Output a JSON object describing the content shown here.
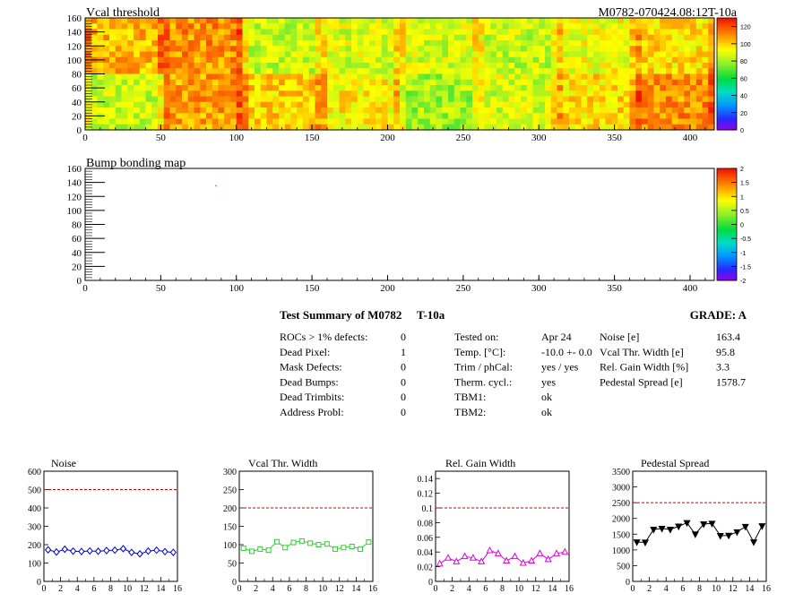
{
  "top_map": {
    "title": "Vcal threshold",
    "id_label": "M0782-070424.08:12T-10a",
    "x_ticks": [
      "0",
      "50",
      "100",
      "150",
      "200",
      "250",
      "300",
      "350",
      "400"
    ],
    "y_ticks": [
      "0",
      "20",
      "40",
      "60",
      "80",
      "100",
      "120",
      "140",
      "160"
    ],
    "palette_ticks": [
      "0",
      "20",
      "40",
      "60",
      "80",
      "100",
      "120"
    ]
  },
  "bump_map": {
    "title": "Bump bonding map",
    "x_ticks": [
      "0",
      "50",
      "100",
      "150",
      "200",
      "250",
      "300",
      "350",
      "400"
    ],
    "y_ticks": [
      "0",
      "20",
      "40",
      "60",
      "80",
      "100",
      "120",
      "140",
      "160"
    ],
    "palette_ticks": [
      "-2",
      "-1.5",
      "-1",
      "-0.5",
      "0",
      "0.5",
      "1",
      "1.5",
      "2"
    ]
  },
  "summary": {
    "title": "Test Summary of M0782",
    "subtitle": "T-10a",
    "grade": "GRADE:  A",
    "col1": [
      {
        "label": "ROCs > 1% defects:",
        "value": "0"
      },
      {
        "label": "Dead Pixel:",
        "value": "1"
      },
      {
        "label": "Mask Defects:",
        "value": "0"
      },
      {
        "label": "Dead Bumps:",
        "value": "0"
      },
      {
        "label": "Dead Trimbits:",
        "value": "0"
      },
      {
        "label": "Address Probl:",
        "value": "0"
      }
    ],
    "col2": [
      {
        "label": "Tested on:",
        "value": "Apr 24"
      },
      {
        "label": "Temp. [°C]:",
        "value": "-10.0 +- 0.0"
      },
      {
        "label": "Trim / phCal:",
        "value": "yes / yes"
      },
      {
        "label": "Therm. cycl.:",
        "value": "yes"
      },
      {
        "label": "TBM1:",
        "value": "ok"
      },
      {
        "label": "TBM2:",
        "value": "ok"
      }
    ],
    "col3": [
      {
        "label": "Noise [e]",
        "value": "163.4"
      },
      {
        "label": "Vcal Thr. Width [e]",
        "value": "95.8"
      },
      {
        "label": "Rel. Gain Width [%]",
        "value": "3.3"
      },
      {
        "label": "Pedestal Spread [e]",
        "value": "1578.7"
      }
    ]
  },
  "chart_data": [
    {
      "type": "heatmap",
      "title": "Vcal threshold",
      "xlim": [
        0,
        416
      ],
      "ylim": [
        0,
        160
      ],
      "zlim": [
        0,
        130
      ],
      "roc_mean_values": {
        "upper_row": [
          105,
          110,
          85,
          88,
          87,
          85,
          92,
          98
        ],
        "lower_row": [
          85,
          108,
          100,
          95,
          80,
          87,
          98,
          110
        ]
      }
    },
    {
      "type": "heatmap",
      "title": "Bump bonding map",
      "xlim": [
        0,
        416
      ],
      "ylim": [
        0,
        160
      ],
      "zlim": [
        -2,
        2
      ],
      "points": [
        {
          "x": 86,
          "y": 136,
          "z": 0
        }
      ]
    },
    {
      "type": "line",
      "title": "Noise",
      "x": [
        0,
        1,
        2,
        3,
        4,
        5,
        6,
        7,
        8,
        9,
        10,
        11,
        12,
        13,
        14,
        15
      ],
      "values": [
        172,
        160,
        175,
        165,
        163,
        166,
        164,
        168,
        170,
        178,
        158,
        150,
        165,
        170,
        162,
        158
      ],
      "ylim": [
        0,
        600
      ],
      "xlim": [
        0,
        16
      ],
      "threshold": 500,
      "color": "#0000cc",
      "marker": "diamond",
      "y_ticks": [
        "0",
        "100",
        "200",
        "300",
        "400",
        "500",
        "600"
      ],
      "x_ticks": [
        "0",
        "2",
        "4",
        "6",
        "8",
        "10",
        "12",
        "14",
        "16"
      ]
    },
    {
      "type": "line",
      "title": "Vcal Thr. Width",
      "x": [
        0,
        1,
        2,
        3,
        4,
        5,
        6,
        7,
        8,
        9,
        10,
        11,
        12,
        13,
        14,
        15
      ],
      "values": [
        90,
        82,
        88,
        85,
        108,
        92,
        106,
        110,
        104,
        100,
        102,
        88,
        92,
        95,
        88,
        107
      ],
      "ylim": [
        0,
        300
      ],
      "xlim": [
        0,
        16
      ],
      "threshold": 200,
      "color": "#33cc33",
      "marker": "square",
      "y_ticks": [
        "0",
        "50",
        "100",
        "150",
        "200",
        "250",
        "300"
      ],
      "x_ticks": [
        "0",
        "2",
        "4",
        "6",
        "8",
        "10",
        "12",
        "14",
        "16"
      ]
    },
    {
      "type": "line",
      "title": "Rel. Gain Width",
      "x": [
        0,
        1,
        2,
        3,
        4,
        5,
        6,
        7,
        8,
        9,
        10,
        11,
        12,
        13,
        14,
        15
      ],
      "values": [
        0.024,
        0.032,
        0.027,
        0.034,
        0.032,
        0.027,
        0.042,
        0.038,
        0.028,
        0.034,
        0.025,
        0.028,
        0.038,
        0.03,
        0.038,
        0.04
      ],
      "ylim": [
        0,
        0.15
      ],
      "xlim": [
        0,
        16
      ],
      "threshold": 0.1,
      "color": "#dd00dd",
      "marker": "triangle",
      "y_ticks": [
        "0",
        "0.02",
        "0.04",
        "0.06",
        "0.08",
        "0.1",
        "0.12",
        "0.14"
      ],
      "x_ticks": [
        "0",
        "2",
        "4",
        "6",
        "8",
        "10",
        "12",
        "14",
        "16"
      ]
    },
    {
      "type": "line",
      "title": "Pedestal Spread",
      "x": [
        0,
        1,
        2,
        3,
        4,
        5,
        6,
        7,
        8,
        9,
        10,
        11,
        12,
        13,
        14,
        15
      ],
      "values": [
        1250,
        1240,
        1650,
        1680,
        1650,
        1750,
        1860,
        1500,
        1820,
        1840,
        1450,
        1460,
        1570,
        1740,
        1250,
        1760
      ],
      "ylim": [
        0,
        3500
      ],
      "xlim": [
        0,
        16
      ],
      "threshold": 2500,
      "color": "#000000",
      "marker": "triangle-down",
      "y_ticks": [
        "0",
        "500",
        "1000",
        "1500",
        "2000",
        "2500",
        "3000",
        "3500"
      ],
      "x_ticks": [
        "0",
        "2",
        "4",
        "6",
        "8",
        "10",
        "12",
        "14",
        "16"
      ]
    }
  ]
}
